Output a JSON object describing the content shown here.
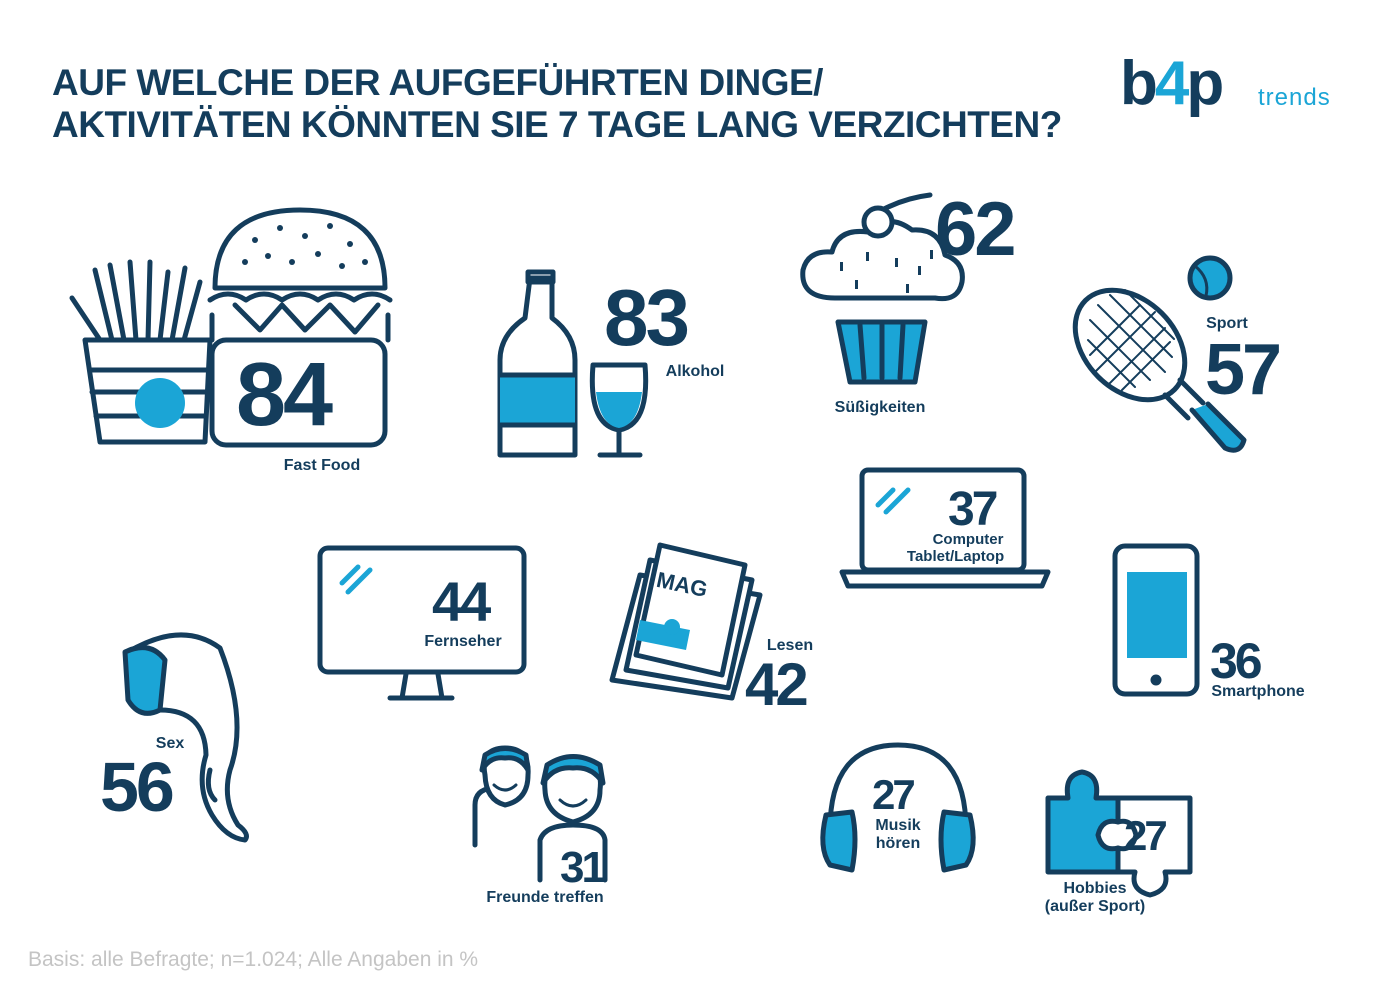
{
  "title": {
    "line1": "AUF WELCHE DER AUFGEFÜHRTEN DINGE/",
    "line2": "AKTIVITÄTEN KÖNNTEN SIE 7 TAGE LANG VERZICHTEN?"
  },
  "logo": {
    "main_b": "b",
    "main_four": "4",
    "main_p": "p",
    "sub": "trends"
  },
  "colors": {
    "navy": "#143d5c",
    "accent": "#1ba5d6",
    "footnote": "#c4c4c4"
  },
  "items": {
    "fastfood": {
      "value": "84",
      "label": "Fast Food",
      "icon": "burger-fries-icon"
    },
    "alkohol": {
      "value": "83",
      "label": "Alkohol",
      "icon": "wine-bottle-glass-icon"
    },
    "suess": {
      "value": "62",
      "label": "Süßigkeiten",
      "icon": "cupcake-icon"
    },
    "sport": {
      "value": "57",
      "label": "Sport",
      "icon": "tennis-racket-icon"
    },
    "computer": {
      "value": "37",
      "label1": "Computer",
      "label2": "Tablet/Laptop",
      "icon": "laptop-icon"
    },
    "fernseher": {
      "value": "44",
      "label": "Fernseher",
      "icon": "tv-monitor-icon"
    },
    "lesen": {
      "value": "42",
      "label": "Lesen",
      "magazine_text": "MAG",
      "icon": "magazine-icon"
    },
    "smartphone": {
      "value": "36",
      "label": "Smartphone",
      "icon": "smartphone-icon"
    },
    "sex": {
      "value": "56",
      "label": "Sex",
      "icon": "leg-stocking-icon"
    },
    "freunde": {
      "value": "31",
      "label": "Freunde treffen",
      "icon": "two-friends-icon"
    },
    "musik": {
      "value": "27",
      "label1": "Musik",
      "label2": "hören",
      "icon": "headphones-icon"
    },
    "hobbies": {
      "value": "27",
      "label1": "Hobbies",
      "label2": "(außer Sport)",
      "icon": "puzzle-icon"
    }
  },
  "footnote": "Basis: alle Befragte; n=1.024; Alle Angaben in %"
}
